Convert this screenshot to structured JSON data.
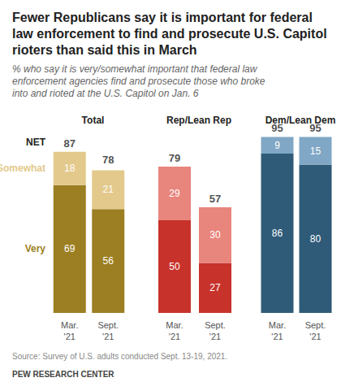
{
  "header": {
    "title": "Fewer Republicans say it is important for federal law enforcement to find and prosecute U.S. Capitol rioters than said this in March",
    "subtitle": "% who say it is very/somewhat important that federal law enforcement agencies find and prosecute those who broke into and rioted at the U.S. Capitol on Jan. 6"
  },
  "chart_data": [
    {
      "type": "bar",
      "title": "Total",
      "stacked": true,
      "data_labels": true,
      "tick_labels": "x",
      "grid": false,
      "categories": [
        "Mar. '21",
        "Sept. '21"
      ],
      "series": [
        {
          "name": "Very",
          "color": "#9c7f22",
          "values": [
            69,
            56
          ]
        },
        {
          "name": "Somewhat",
          "color": "#e3c98c",
          "values": [
            18,
            21
          ]
        }
      ],
      "net_label": "NET",
      "net_values": [
        87,
        78
      ],
      "ylim": [
        0,
        100
      ]
    },
    {
      "type": "bar",
      "title": "Rep/Lean Rep",
      "stacked": true,
      "data_labels": true,
      "tick_labels": "x",
      "grid": false,
      "categories": [
        "Mar. '21",
        "Sept. '21"
      ],
      "series": [
        {
          "color": "#c7322b",
          "values": [
            50,
            27
          ]
        },
        {
          "color": "#e8857d",
          "values": [
            29,
            30
          ]
        }
      ],
      "net_values": [
        79,
        57
      ],
      "ylim": [
        0,
        100
      ]
    },
    {
      "type": "bar",
      "title": "Dem/Lean Dem",
      "stacked": true,
      "data_labels": true,
      "tick_labels": "x",
      "grid": false,
      "categories": [
        "Mar. '21",
        "Sept. '21"
      ],
      "series": [
        {
          "color": "#2f5b79",
          "values": [
            86,
            80
          ]
        },
        {
          "color": "#80a7c5",
          "values": [
            9,
            15
          ]
        }
      ],
      "net_values": [
        95,
        95
      ],
      "ylim": [
        0,
        100
      ]
    }
  ],
  "footer": {
    "source": "Source: Survey of U.S. adults conducted Sept. 13-19, 2021.",
    "credit": "PEW RESEARCH CENTER"
  }
}
